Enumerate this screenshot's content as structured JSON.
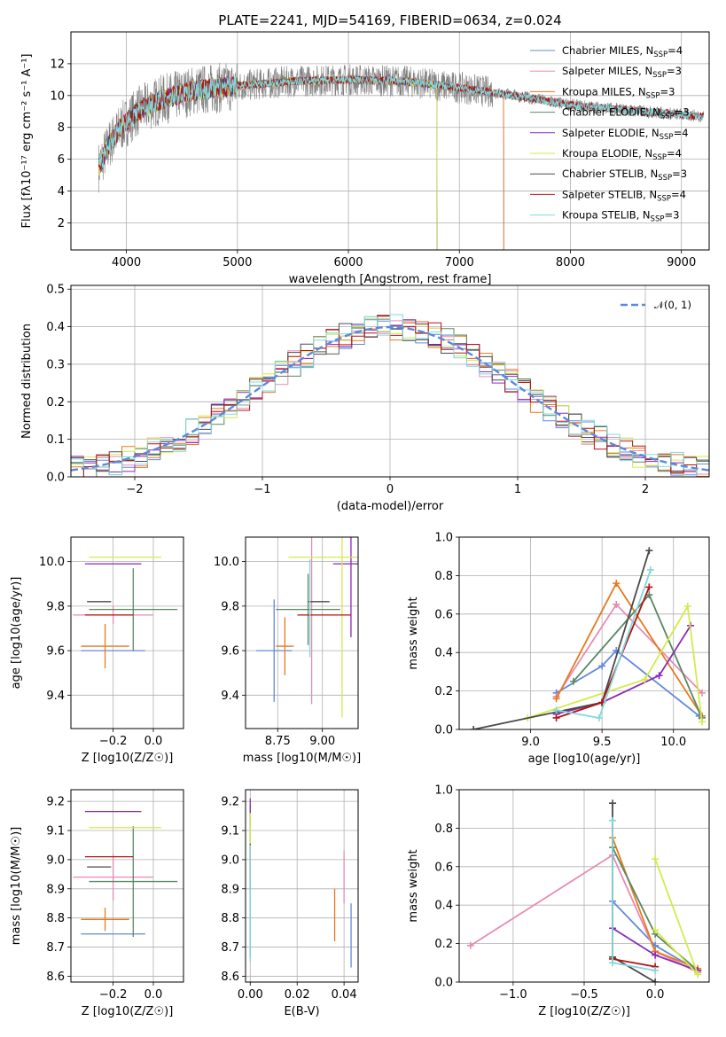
{
  "colors": {
    "Chabrier MILES": "#6489dc",
    "Salpeter MILES": "#e68cb4",
    "Kroupa MILES": "#e67a1e",
    "Chabrier ELODIE": "#5a8864",
    "Salpeter ELODIE": "#8a2ab8",
    "Kroupa ELODIE": "#d4ea4a",
    "Chabrier STELIB": "#4a4a4a",
    "Salpeter STELIB": "#b41414",
    "Kroupa STELIB": "#82d8dc"
  },
  "chart_data": [
    {
      "id": "spectrum",
      "type": "line",
      "title": "PLATE=2241, MJD=54169, FIBERID=0634, z=0.024",
      "xlabel": "wavelength [Angstrom, rest frame]",
      "ylabel": "Flux [fλ10⁻¹⁷ erg cm⁻² s⁻¹ A⁻¹]",
      "xlim": [
        3500,
        9250
      ],
      "ylim": [
        0.3,
        14
      ],
      "xticks": [
        4000,
        5000,
        6000,
        7000,
        8000,
        9000
      ],
      "yticks": [
        2,
        4,
        6,
        8,
        10,
        12
      ],
      "grid": true,
      "legend_position": "upper-right",
      "continuum_anchor_points": [
        [
          3750,
          5.5
        ],
        [
          3850,
          7.0
        ],
        [
          3950,
          8.0
        ],
        [
          4100,
          9.0
        ],
        [
          4300,
          9.7
        ],
        [
          4600,
          10.3
        ],
        [
          5000,
          10.6
        ],
        [
          5500,
          10.9
        ],
        [
          6000,
          11.0
        ],
        [
          6500,
          10.9
        ],
        [
          7000,
          10.5
        ],
        [
          7500,
          10.0
        ],
        [
          8000,
          9.4
        ],
        [
          8500,
          9.1
        ],
        [
          9000,
          8.8
        ],
        [
          9200,
          8.7
        ]
      ],
      "series": [
        {
          "name": "Chabrier MILES, N_SSP=4",
          "end": 7400
        },
        {
          "name": "Salpeter MILES, N_SSP=3",
          "end": 7400
        },
        {
          "name": "Kroupa MILES, N_SSP=3",
          "end": 7400
        },
        {
          "name": "Chabrier ELODIE, N_SSP=3",
          "end": 6800
        },
        {
          "name": "Salpeter ELODIE, N_SSP=4",
          "end": 6800
        },
        {
          "name": "Kroupa ELODIE, N_SSP=4",
          "end": 6800
        },
        {
          "name": "Chabrier STELIB, N_SSP=3",
          "end": 9200
        },
        {
          "name": "Salpeter STELIB, N_SSP=4",
          "end": 9200
        },
        {
          "name": "Kroupa STELIB, N_SSP=3",
          "end": 9200
        }
      ],
      "data_spectrum_range": [
        3750,
        9200
      ]
    },
    {
      "id": "residuals",
      "type": "line",
      "xlabel": "(data-model)/error",
      "ylabel": "Normed distribution",
      "xlim": [
        -2.5,
        2.5
      ],
      "ylim": [
        0,
        0.51
      ],
      "xticks": [
        -2,
        -1,
        0,
        1,
        2
      ],
      "yticks": [
        0.0,
        0.1,
        0.2,
        0.3,
        0.4,
        0.5
      ],
      "grid": true,
      "legend": "𝒩(0, 1)",
      "gaussian_color": "#5a8adc",
      "bin_width": 0.1
    },
    {
      "id": "age-vs-Z",
      "type": "scatter",
      "xlabel": "Z [log10(Z/Z☉)]",
      "ylabel": "age [log10(age/yr)]",
      "xlim": [
        -0.41,
        0.15
      ],
      "ylim": [
        9.25,
        10.11
      ],
      "xticks": [
        -0.2,
        0.0
      ],
      "yticks": [
        9.4,
        9.6,
        9.8,
        10.0
      ],
      "points": [
        {
          "m": "Chabrier MILES",
          "x": -0.2,
          "xe": 0.16,
          "y": 9.6,
          "ye": 0
        },
        {
          "m": "Salpeter MILES",
          "x": -0.2,
          "xe": 0.2,
          "y": 9.76,
          "ye": 0.04
        },
        {
          "m": "Kroupa MILES",
          "x": -0.24,
          "xe": 0.12,
          "y": 9.62,
          "ye": 0.1
        },
        {
          "m": "Chabrier ELODIE",
          "x": -0.1,
          "xe": 0.22,
          "y": 9.785,
          "ye": 0.185
        },
        {
          "m": "Salpeter ELODIE",
          "x": -0.2,
          "xe": 0.14,
          "y": 9.99,
          "ye": 0.0
        },
        {
          "m": "Kroupa ELODIE",
          "x": -0.14,
          "xe": 0.18,
          "y": 10.02,
          "ye": 0.0
        },
        {
          "m": "Chabrier STELIB",
          "x": -0.27,
          "xe": 0.06,
          "y": 9.82,
          "ye": 0.0
        },
        {
          "m": "Salpeter STELIB",
          "x": -0.22,
          "xe": 0.12,
          "y": 9.76,
          "ye": 0.0
        },
        {
          "m": "Kroupa STELIB",
          "x": -0.06,
          "xe": 0.0,
          "y": 9.79,
          "ye": 0.0
        }
      ]
    },
    {
      "id": "age-vs-mass",
      "type": "scatter",
      "xlabel": "mass [log10(M/M☉)]",
      "ylabel": "",
      "xlim": [
        8.57,
        9.2
      ],
      "ylim": [
        9.25,
        10.11
      ],
      "xticks": [
        8.75,
        9.0
      ],
      "yticks": [
        9.4,
        9.6,
        9.8,
        10.0
      ],
      "points": [
        {
          "m": "Chabrier MILES",
          "x": 8.73,
          "xe": 0.1,
          "y": 9.6,
          "ye": 0.23
        },
        {
          "m": "Salpeter MILES",
          "x": 8.94,
          "xe": 0.0,
          "y": 9.76,
          "ye": 0.4
        },
        {
          "m": "Kroupa MILES",
          "x": 8.79,
          "xe": 0.05,
          "y": 9.62,
          "ye": 0.13
        },
        {
          "m": "Chabrier ELODIE",
          "x": 8.92,
          "xe": 0.18,
          "y": 9.785,
          "ye": 0.16
        },
        {
          "m": "Salpeter ELODIE",
          "x": 9.16,
          "xe": 0.1,
          "y": 9.99,
          "ye": 0.33
        },
        {
          "m": "Kroupa ELODIE",
          "x": 9.11,
          "xe": 0.3,
          "y": 10.02,
          "ye": 0.72
        },
        {
          "m": "Chabrier STELIB",
          "x": 8.98,
          "xe": 0.06,
          "y": 9.82,
          "ye": 0.0
        },
        {
          "m": "Salpeter STELIB",
          "x": 9.01,
          "xe": 0.15,
          "y": 9.76,
          "ye": 0.0
        },
        {
          "m": "Kroupa STELIB",
          "x": 8.93,
          "xe": 0.0,
          "y": 9.79,
          "ye": 0.22
        }
      ]
    },
    {
      "id": "weight-vs-age",
      "type": "line",
      "xlabel": "age [log10(age/yr)]",
      "ylabel": "mass weight",
      "xlim": [
        8.5,
        10.25
      ],
      "ylim": [
        0,
        1.0
      ],
      "xticks": [
        9.0,
        9.5,
        10.0
      ],
      "yticks": [
        0.0,
        0.2,
        0.4,
        0.6,
        0.8,
        1.0
      ],
      "series": [
        {
          "m": "Chabrier MILES",
          "pts": [
            [
              9.18,
              0.19
            ],
            [
              9.5,
              0.33
            ],
            [
              9.6,
              0.41
            ],
            [
              10.18,
              0.07
            ]
          ]
        },
        {
          "m": "Salpeter MILES",
          "pts": [
            [
              9.18,
              0.17
            ],
            [
              9.6,
              0.65
            ],
            [
              10.2,
              0.19
            ]
          ]
        },
        {
          "m": "Kroupa MILES",
          "pts": [
            [
              9.18,
              0.16
            ],
            [
              9.6,
              0.76
            ],
            [
              10.2,
              0.07
            ]
          ]
        },
        {
          "m": "Chabrier ELODIE",
          "pts": [
            [
              9.3,
              0.25
            ],
            [
              9.83,
              0.7
            ],
            [
              10.2,
              0.06
            ]
          ]
        },
        {
          "m": "Salpeter ELODIE",
          "pts": [
            [
              9.18,
              0.08
            ],
            [
              9.5,
              0.14
            ],
            [
              9.9,
              0.28
            ],
            [
              10.12,
              0.54
            ]
          ]
        },
        {
          "m": "Kroupa ELODIE",
          "pts": [
            [
              8.98,
              0.06
            ],
            [
              9.8,
              0.26
            ],
            [
              10.1,
              0.64
            ],
            [
              10.2,
              0.04
            ]
          ]
        },
        {
          "m": "Chabrier STELIB",
          "pts": [
            [
              8.6,
              0.0
            ],
            [
              9.5,
              0.14
            ],
            [
              9.83,
              0.93
            ]
          ]
        },
        {
          "m": "Salpeter STELIB",
          "pts": [
            [
              9.18,
              0.06
            ],
            [
              9.5,
              0.14
            ],
            [
              9.83,
              0.74
            ]
          ]
        },
        {
          "m": "Kroupa STELIB",
          "pts": [
            [
              9.18,
              0.1
            ],
            [
              9.48,
              0.06
            ],
            [
              9.84,
              0.83
            ]
          ]
        }
      ]
    },
    {
      "id": "mass-vs-Z",
      "type": "scatter",
      "xlabel": "Z [log10(Z/Z☉)]",
      "ylabel": "mass [log10(M/M☉)]",
      "xlim": [
        -0.41,
        0.15
      ],
      "ylim": [
        8.58,
        9.24
      ],
      "xticks": [
        -0.2,
        0.0
      ],
      "yticks": [
        8.6,
        8.7,
        8.8,
        8.9,
        9.0,
        9.1,
        9.2
      ],
      "points": [
        {
          "m": "Chabrier MILES",
          "x": -0.2,
          "xe": 0.16,
          "y": 8.745,
          "ye": 0.0
        },
        {
          "m": "Salpeter MILES",
          "x": -0.2,
          "xe": 0.2,
          "y": 8.94,
          "ye": 0.08
        },
        {
          "m": "Kroupa MILES",
          "x": -0.24,
          "xe": 0.12,
          "y": 8.795,
          "ye": 0.04
        },
        {
          "m": "Chabrier ELODIE",
          "x": -0.1,
          "xe": 0.22,
          "y": 8.925,
          "ye": 0.19
        },
        {
          "m": "Salpeter ELODIE",
          "x": -0.2,
          "xe": 0.14,
          "y": 9.165,
          "ye": 0.0
        },
        {
          "m": "Kroupa ELODIE",
          "x": -0.14,
          "xe": 0.18,
          "y": 9.11,
          "ye": 0.0
        },
        {
          "m": "Chabrier STELIB",
          "x": -0.27,
          "xe": 0.06,
          "y": 8.975,
          "ye": 0.0
        },
        {
          "m": "Salpeter STELIB",
          "x": -0.22,
          "xe": 0.12,
          "y": 9.01,
          "ye": 0.0
        },
        {
          "m": "Kroupa STELIB",
          "x": -0.06,
          "xe": 0.0,
          "y": 8.93,
          "ye": 0.0
        }
      ]
    },
    {
      "id": "mass-vs-EBV",
      "type": "scatter",
      "xlabel": "E(B-V)",
      "ylabel": "",
      "xlim": [
        -0.002,
        0.046
      ],
      "ylim": [
        8.58,
        9.24
      ],
      "xticks": [
        0.0,
        0.02,
        0.04
      ],
      "yticks": [
        8.6,
        8.7,
        8.8,
        8.9,
        9.0,
        9.1,
        9.2
      ],
      "points": [
        {
          "m": "Chabrier MILES",
          "x": 0.043,
          "xe": 0.0,
          "y": 8.74,
          "ye": 0.11
        },
        {
          "m": "Salpeter MILES",
          "x": 0.04,
          "xe": 0.0,
          "y": 8.94,
          "ye": 0.09
        },
        {
          "m": "Kroupa MILES",
          "x": 0.036,
          "xe": 0.0,
          "y": 8.81,
          "ye": 0.09
        },
        {
          "m": "Chabrier ELODIE",
          "x": 0.0,
          "xe": 0.0,
          "y": 8.925,
          "ye": 0.26
        },
        {
          "m": "Salpeter ELODIE",
          "x": 0.0,
          "xe": 0.0,
          "y": 9.16,
          "ye": 0.05
        },
        {
          "m": "Kroupa ELODIE",
          "x": 0.0,
          "xe": 0.0,
          "y": 9.06,
          "ye": 0.1
        },
        {
          "m": "Chabrier STELIB",
          "x": 0.0,
          "xe": 0.0,
          "y": 8.975,
          "ye": 0.08
        },
        {
          "m": "Salpeter STELIB",
          "x": 0.0,
          "xe": 0.0,
          "y": 9.0,
          "ye": 0.05
        },
        {
          "m": "Kroupa STELIB",
          "x": 0.0,
          "xe": 0.0,
          "y": 8.85,
          "ye": 0.2
        }
      ]
    },
    {
      "id": "weight-vs-Z",
      "type": "line",
      "xlabel": "Z [log10(Z/Z☉)]",
      "ylabel": "mass weight",
      "xlim": [
        -1.38,
        0.38
      ],
      "ylim": [
        0,
        1.0
      ],
      "xticks": [
        -1.0,
        -0.5,
        0.0
      ],
      "yticks": [
        0.0,
        0.2,
        0.4,
        0.6,
        0.8,
        1.0
      ],
      "series": [
        {
          "m": "Chabrier MILES",
          "pts": [
            [
              -0.3,
              0.42
            ],
            [
              0.0,
              0.19
            ],
            [
              0.3,
              0.06
            ]
          ]
        },
        {
          "m": "Salpeter MILES",
          "pts": [
            [
              -1.3,
              0.19
            ],
            [
              -0.3,
              0.66
            ],
            [
              0.0,
              0.16
            ],
            [
              0.3,
              0.05
            ]
          ]
        },
        {
          "m": "Kroupa MILES",
          "pts": [
            [
              -0.3,
              0.75
            ],
            [
              0.0,
              0.16
            ],
            [
              0.3,
              0.07
            ]
          ]
        },
        {
          "m": "Chabrier ELODIE",
          "pts": [
            [
              -0.3,
              0.7
            ],
            [
              0.0,
              0.25
            ],
            [
              0.3,
              0.06
            ]
          ]
        },
        {
          "m": "Salpeter ELODIE",
          "pts": [
            [
              -0.3,
              0.28
            ],
            [
              0.0,
              0.14
            ],
            [
              0.3,
              0.06
            ]
          ]
        },
        {
          "m": "Kroupa ELODIE",
          "pts": [
            [
              0.0,
              0.64
            ],
            [
              0.3,
              0.04
            ],
            [
              0.0,
              0.27
            ]
          ]
        },
        {
          "m": "Chabrier STELIB",
          "pts": [
            [
              -0.3,
              0.93
            ],
            [
              -0.3,
              0.13
            ],
            [
              0.0,
              0.0
            ]
          ]
        },
        {
          "m": "Salpeter STELIB",
          "pts": [
            [
              -0.3,
              0.12
            ],
            [
              0.0,
              0.08
            ]
          ]
        },
        {
          "m": "Kroupa STELIB",
          "pts": [
            [
              -0.3,
              0.84
            ],
            [
              -0.3,
              0.1
            ],
            [
              0.0,
              0.06
            ]
          ]
        }
      ]
    }
  ]
}
